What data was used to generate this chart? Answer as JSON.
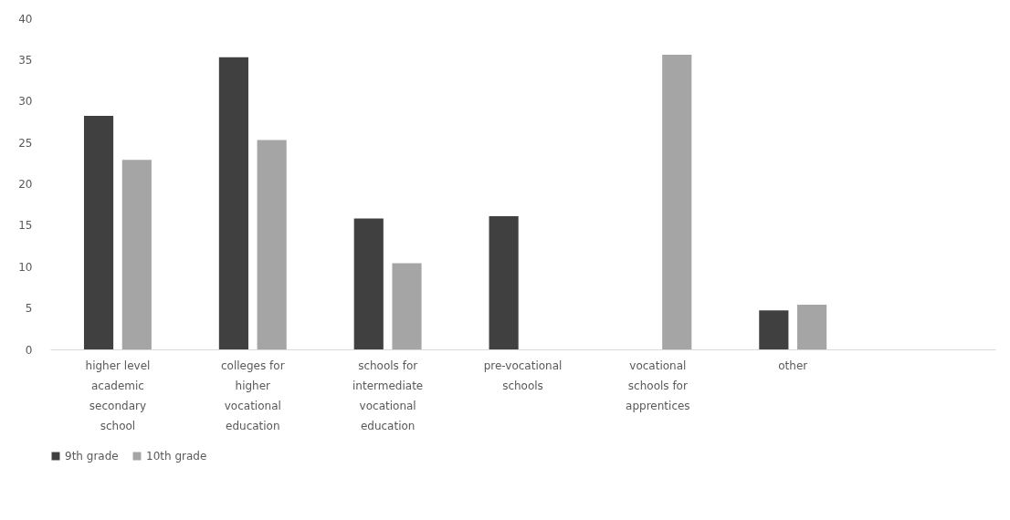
{
  "chart_data": {
    "type": "bar",
    "categories": [
      "higher level academic secondary school",
      "colleges for higher vocational education",
      "schools for intermediate vocational education",
      "pre-vocational schools",
      "vocational schools for apprentices",
      "other",
      null
    ],
    "series": [
      {
        "name": "9th grade",
        "color": "#404040",
        "values": [
          28.2,
          35.3,
          15.8,
          16.1,
          null,
          4.7,
          null
        ]
      },
      {
        "name": "10th grade",
        "color": "#a5a5a5",
        "values": [
          22.9,
          25.3,
          10.4,
          null,
          35.6,
          5.4,
          null
        ]
      }
    ],
    "ylim": [
      0,
      40
    ],
    "yticks": [
      0,
      5,
      10,
      15,
      20,
      25,
      30,
      35,
      40
    ],
    "grid": false,
    "legend": "bottom"
  }
}
